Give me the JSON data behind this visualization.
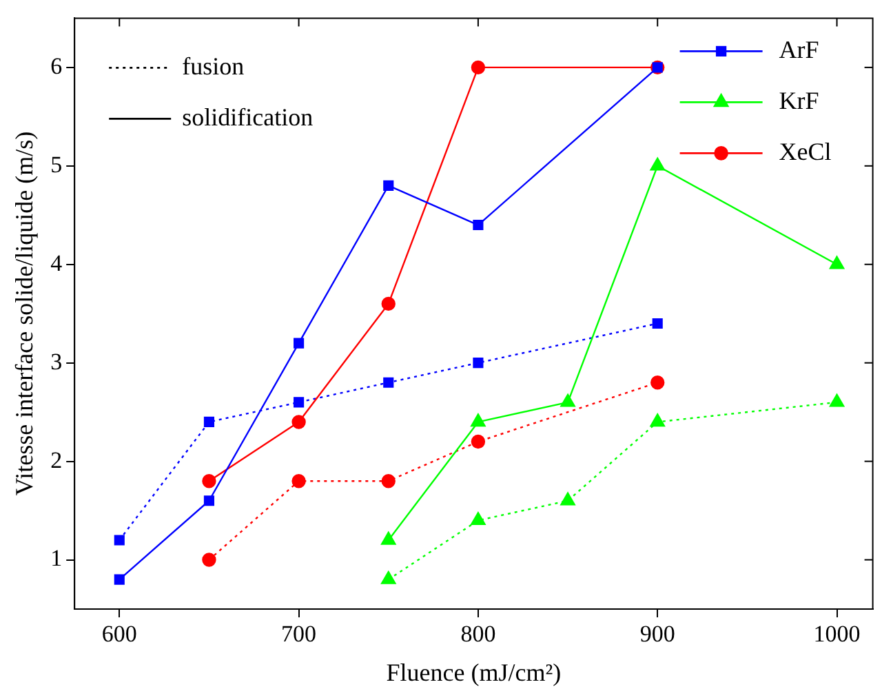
{
  "chart_data": {
    "type": "line",
    "xlabel": "Fluence (mJ/cm²)",
    "ylabel": "Vitesse interface solide/liquide (m/s)",
    "xlim": [
      575,
      1020
    ],
    "xticks": [
      600,
      700,
      800,
      900,
      1000
    ],
    "ylim": [
      0.5,
      6.5
    ],
    "yticks": [
      1,
      2,
      3,
      4,
      5,
      6
    ],
    "grid": false,
    "legend": "top right",
    "annotations": [
      "fusion",
      "solidification"
    ],
    "series": [
      {
        "name": "ArF",
        "color": "#0000ff",
        "marker": "square",
        "line_style": "solid",
        "x": [
          600,
          650,
          700,
          750,
          800,
          900
        ],
        "values": [
          0.8,
          1.6,
          3.2,
          4.8,
          4.4,
          6.0
        ]
      },
      {
        "name": "KrF",
        "color": "#00ff00",
        "marker": "triangle",
        "line_style": "solid",
        "x": [
          750,
          800,
          850,
          900,
          1000
        ],
        "values": [
          1.2,
          2.4,
          2.6,
          5.0,
          4.0
        ]
      },
      {
        "name": "XeCl",
        "color": "#ff0000",
        "marker": "circle",
        "line_style": "solid",
        "x": [
          650,
          700,
          750,
          800,
          900
        ],
        "values": [
          1.8,
          2.4,
          3.6,
          6.0,
          6.0
        ]
      },
      {
        "color": "#0000ff",
        "marker": "square",
        "line_style": "dotted",
        "x": [
          600,
          650,
          700,
          750,
          800,
          900
        ],
        "values": [
          1.2,
          2.4,
          2.6,
          2.8,
          3.0,
          3.4
        ]
      },
      {
        "color": "#00ff00",
        "marker": "triangle",
        "line_style": "dotted",
        "x": [
          750,
          800,
          850,
          900,
          1000
        ],
        "values": [
          0.8,
          1.4,
          1.6,
          2.4,
          2.6
        ]
      },
      {
        "color": "#ff0000",
        "marker": "circle",
        "line_style": "dotted",
        "x": [
          650,
          700,
          750,
          800,
          900
        ],
        "values": [
          1.0,
          1.8,
          1.8,
          2.2,
          2.8
        ]
      }
    ]
  }
}
